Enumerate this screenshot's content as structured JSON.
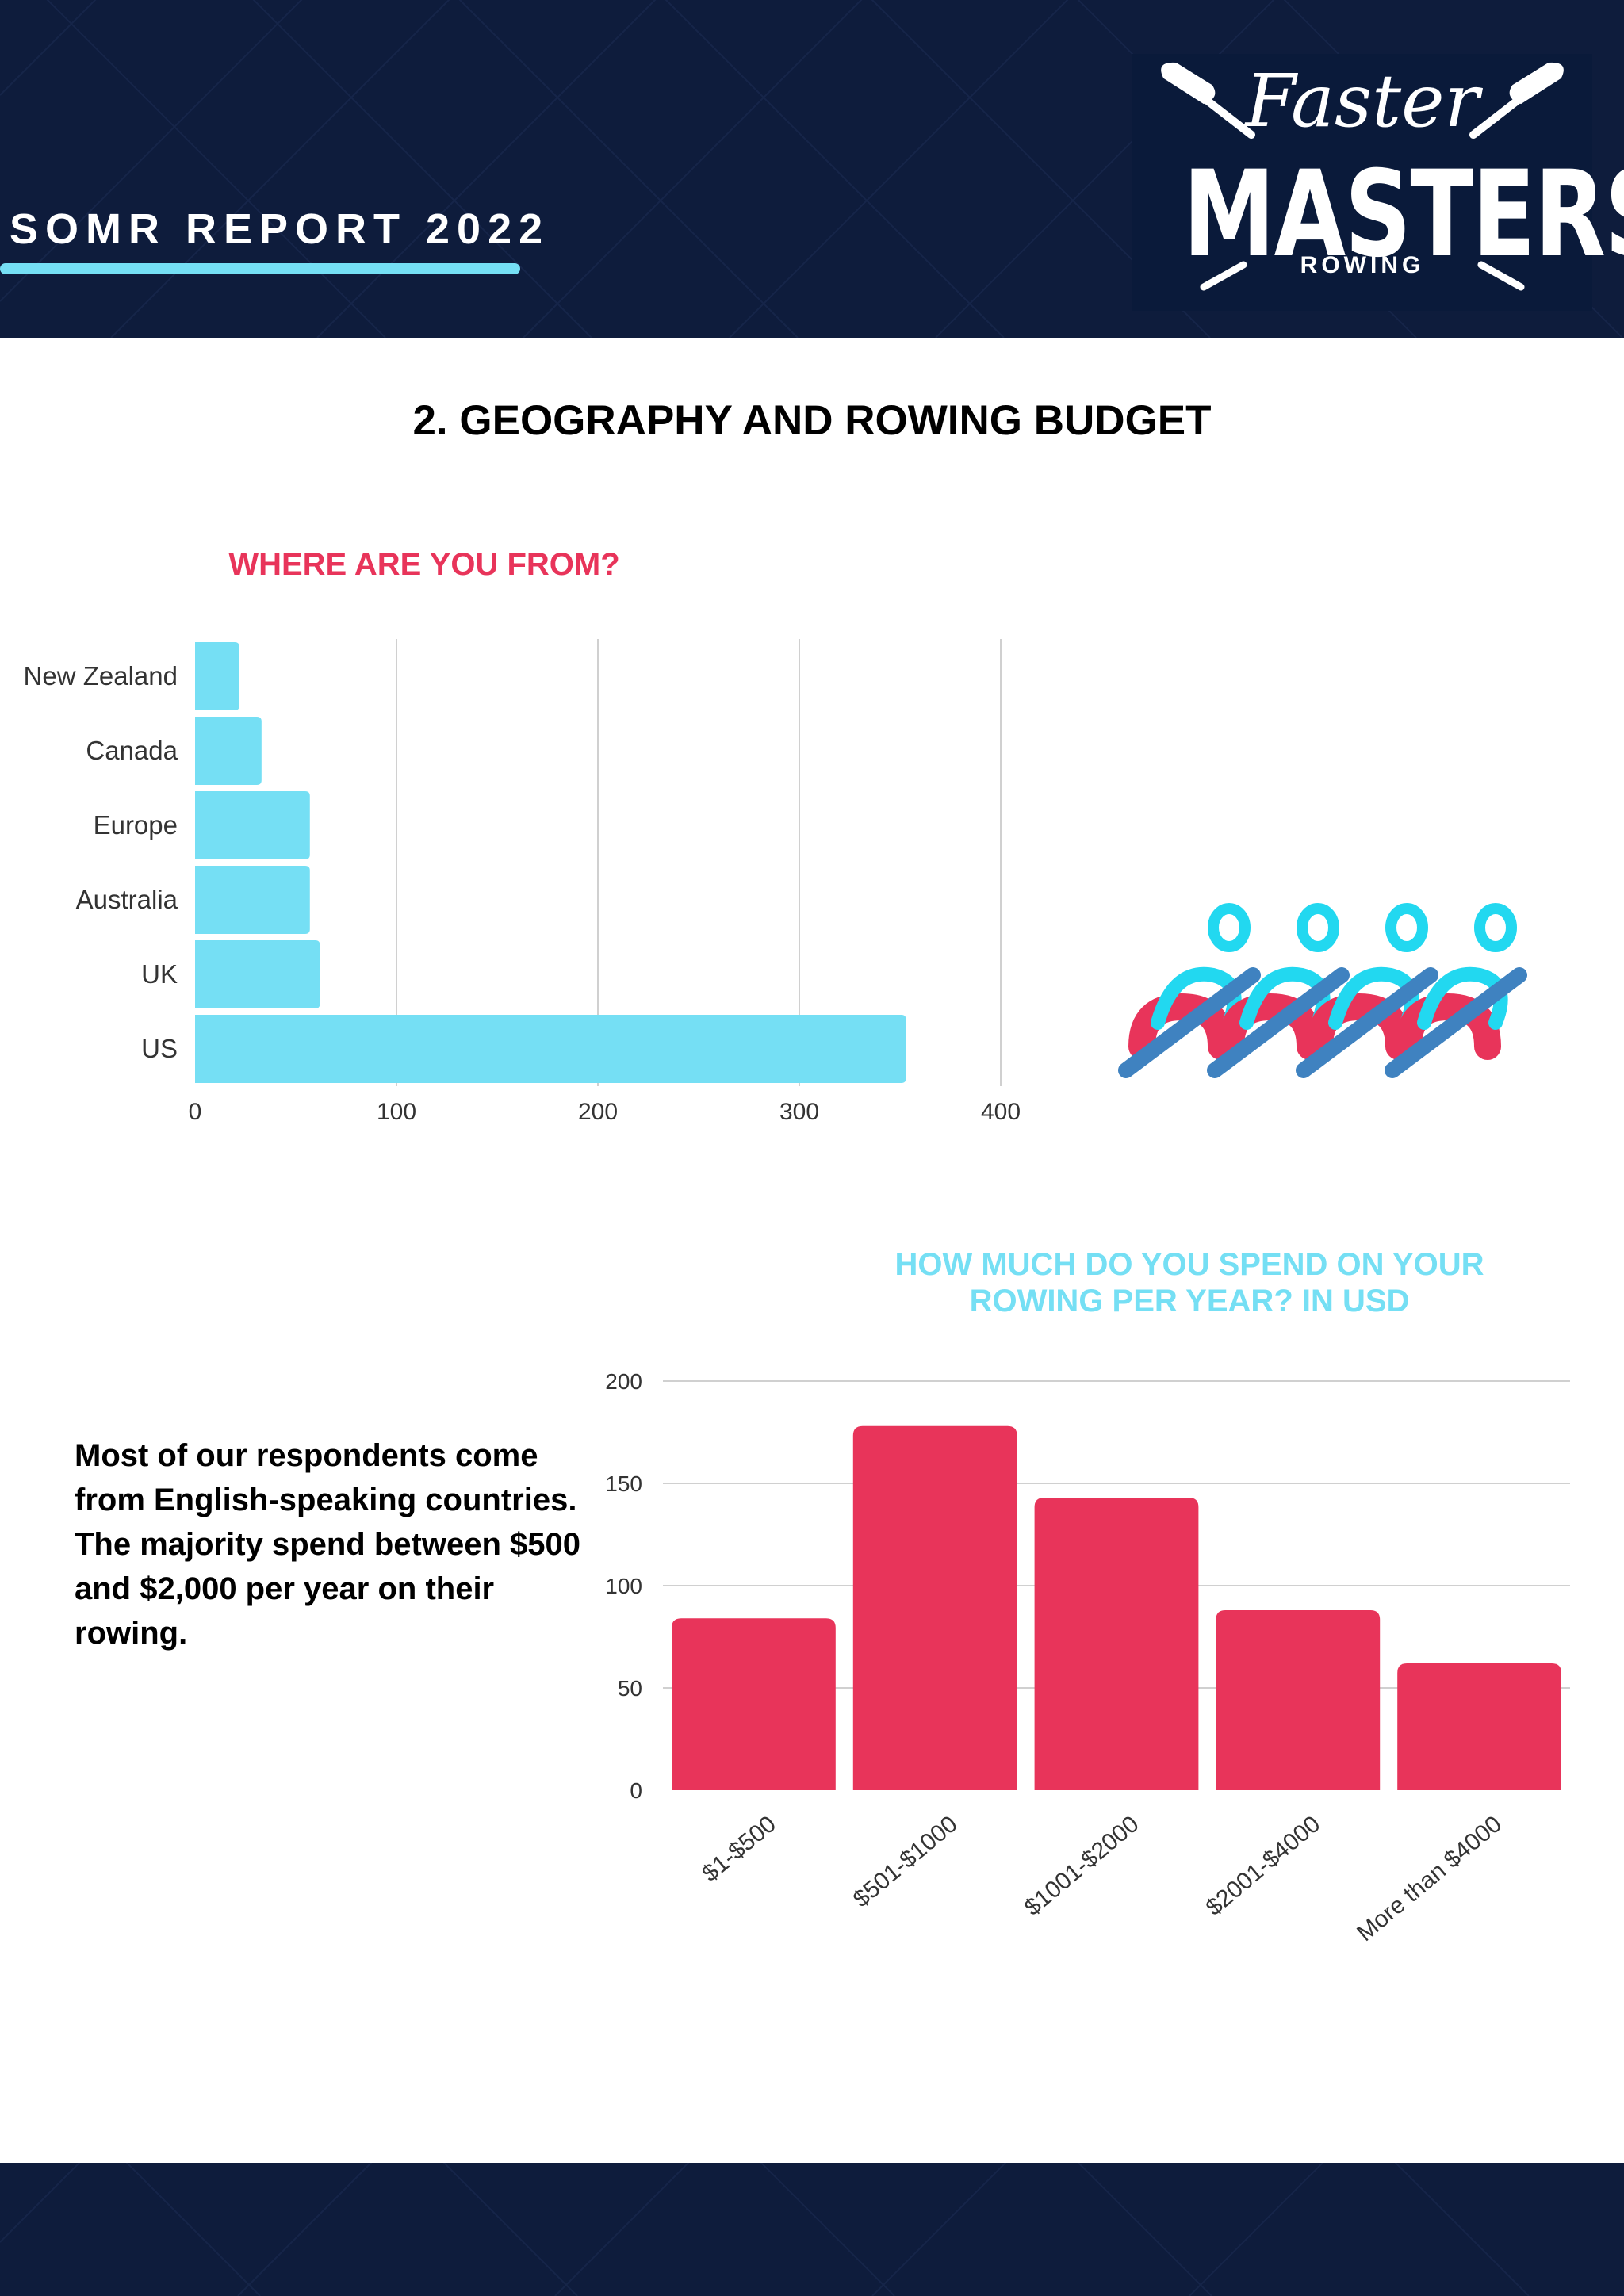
{
  "header": {
    "report_title": "SOMR REPORT 2022",
    "logo": {
      "script_text": "Faster",
      "main_text": "MASTERS",
      "sub_text": "ROWING"
    }
  },
  "section": {
    "title": "2. GEOGRAPHY AND ROWING BUDGET"
  },
  "summary_text": "Most of our respondents come from English-speaking countries. The majority spend between $500 and $2,000 per year on their rowing.",
  "colors": {
    "navy": "#0e1c3c",
    "accent_cyan": "#75dff4",
    "accent_red": "#e8345a"
  },
  "chart_data": [
    {
      "type": "bar",
      "orientation": "horizontal",
      "title": "WHERE ARE YOU FROM?",
      "categories": [
        "New Zealand",
        "Canada",
        "Europe",
        "Australia",
        "UK",
        "US"
      ],
      "values": [
        22,
        33,
        57,
        57,
        62,
        353
      ],
      "xlim": [
        0,
        400
      ],
      "xticks": [
        0,
        100,
        200,
        300,
        400
      ],
      "grid": true,
      "color": "#75dff4"
    },
    {
      "type": "bar",
      "orientation": "vertical",
      "title": "HOW MUCH DO YOU SPEND ON YOUR ROWING PER YEAR? IN USD",
      "categories": [
        "$1-$500",
        "$501-$1000",
        "$1001-$2000",
        "$2001-$4000",
        "More than $4000"
      ],
      "values": [
        84,
        178,
        143,
        88,
        62
      ],
      "ylim": [
        0,
        200
      ],
      "yticks": [
        0,
        50,
        100,
        150,
        200
      ],
      "grid": true,
      "color": "#e8345a"
    }
  ]
}
